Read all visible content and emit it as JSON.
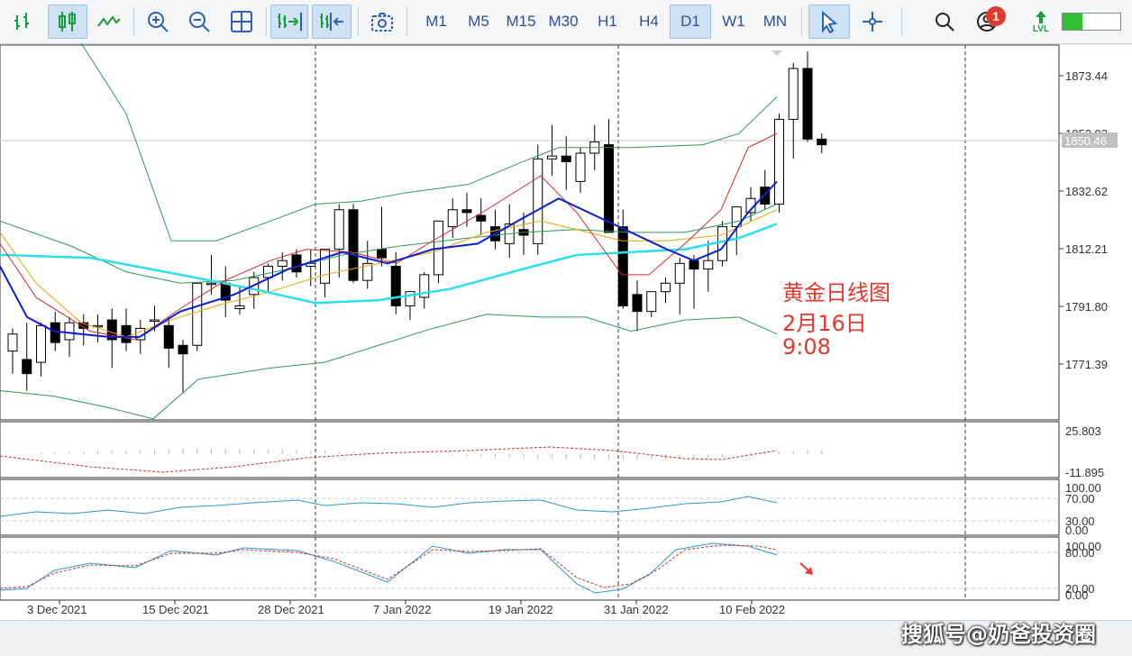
{
  "toolbar": {
    "timeframes": [
      {
        "label": "M1",
        "active": false
      },
      {
        "label": "M5",
        "active": false
      },
      {
        "label": "M15",
        "active": false
      },
      {
        "label": "M30",
        "active": false
      },
      {
        "label": "H1",
        "active": false
      },
      {
        "label": "H4",
        "active": false
      },
      {
        "label": "D1",
        "active": true
      },
      {
        "label": "W1",
        "active": false
      },
      {
        "label": "MN",
        "active": false
      }
    ],
    "notifications_count": "1",
    "lvl_label": "LVL",
    "level_fill": 0.35,
    "colors": {
      "accent_bg": "#cfe2f5",
      "timeframe_text": "#2d4f9e",
      "level_green": "#2fc02f",
      "badge_red": "#e03a2e"
    }
  },
  "chart": {
    "price_axis_labels": [
      "1873.44",
      "1853.03",
      "1832.62",
      "1812.21",
      "1791.80",
      "1771.39"
    ],
    "current_price": "1850.46",
    "macd_axis_labels": [
      "25.803",
      "-11.895"
    ],
    "rsi_axis_labels": [
      "100.00",
      "70.00",
      "30.00",
      "0.00"
    ],
    "stoch_axis_labels": [
      "100.00",
      "80.00",
      "20.00",
      "0.00"
    ],
    "date_labels": [
      "3 Dec 2021",
      "15 Dec 2021",
      "28 Dec 2021",
      "7 Jan 2022",
      "19 Jan 2022",
      "31 Jan 2022",
      "10 Feb 2022"
    ],
    "annotation": {
      "line1": "黄金日线图",
      "line2": "2月16日",
      "line3": "9:08"
    },
    "colors": {
      "bull": "#000000",
      "bear": "#000000",
      "ma_red": "#d62b2b",
      "ma_blue": "#0a1fd0",
      "ma_cyan": "#29e0f0",
      "ma_orange": "#f0a30a",
      "bands": "#2a9a5a",
      "annotation": "#e5392b"
    }
  },
  "watermark": "搜狐号@奶爸投资圈"
}
